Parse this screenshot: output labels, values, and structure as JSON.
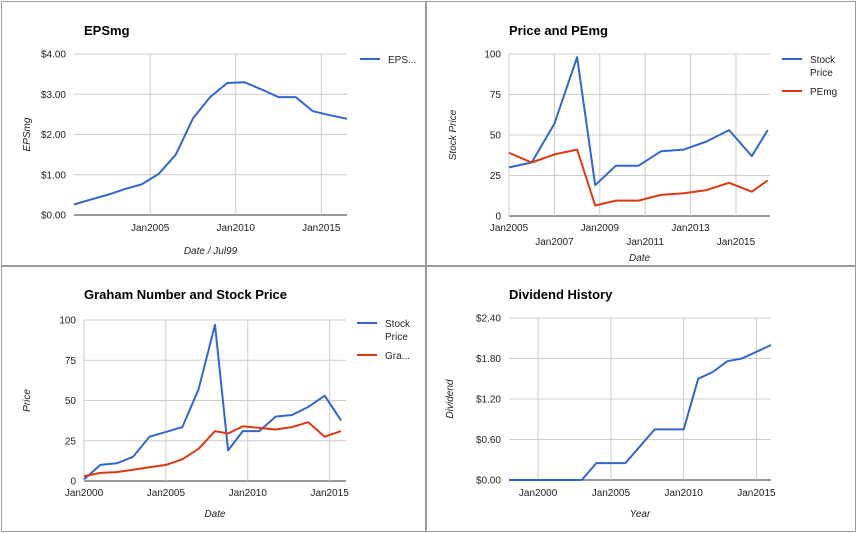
{
  "chart_data": [
    {
      "type": "line",
      "title": "EPSmg",
      "xlabel": "Date / Jul99",
      "ylabel": "EPSmg",
      "xlim": [
        2000.55,
        2016.5
      ],
      "ylim": [
        0,
        4
      ],
      "x_ticks": [
        {
          "v": 2005,
          "label": "Jan2005"
        },
        {
          "v": 2010,
          "label": "Jan2010"
        },
        {
          "v": 2015,
          "label": "Jan2015"
        }
      ],
      "y_ticks": [
        {
          "v": 0,
          "label": "$0.00"
        },
        {
          "v": 1,
          "label": "$1.00"
        },
        {
          "v": 2,
          "label": "$2.00"
        },
        {
          "v": 3,
          "label": "$3.00"
        },
        {
          "v": 4,
          "label": "$4.00"
        }
      ],
      "legend": "right",
      "grid": true,
      "series": [
        {
          "name": "EPS...",
          "color": "#3366cc",
          "x": [
            2000.55,
            2001.5,
            2002.5,
            2003.5,
            2004.5,
            2005.5,
            2006.5,
            2007.5,
            2008.5,
            2009.5,
            2010.5,
            2011.5,
            2012.5,
            2013.5,
            2014.5,
            2015.5,
            2016.5
          ],
          "y": [
            0.26,
            0.38,
            0.5,
            0.64,
            0.76,
            1.02,
            1.5,
            2.4,
            2.93,
            3.28,
            3.3,
            3.12,
            2.93,
            2.93,
            2.58,
            2.48,
            2.39
          ]
        }
      ]
    },
    {
      "type": "line",
      "title": "Price and PEmg",
      "xlabel": "Date",
      "ylabel": "Stock Price",
      "xlim": [
        2005,
        2016.5
      ],
      "ylim": [
        0,
        100
      ],
      "x_ticks": [
        {
          "v": 2005,
          "label": "Jan2005",
          "row": 0
        },
        {
          "v": 2007,
          "label": "Jan2007",
          "row": 1
        },
        {
          "v": 2009,
          "label": "Jan2009",
          "row": 0
        },
        {
          "v": 2011,
          "label": "Jan2011",
          "row": 1
        },
        {
          "v": 2013,
          "label": "Jan2013",
          "row": 0
        },
        {
          "v": 2015,
          "label": "Jan2015",
          "row": 1
        }
      ],
      "y_ticks": [
        {
          "v": 0,
          "label": "0"
        },
        {
          "v": 25,
          "label": "25"
        },
        {
          "v": 50,
          "label": "50"
        },
        {
          "v": 75,
          "label": "75"
        },
        {
          "v": 100,
          "label": "100"
        }
      ],
      "legend": "right",
      "grid": true,
      "series": [
        {
          "name": "Stock Price",
          "color": "#3366cc",
          "x": [
            2005,
            2006,
            2007,
            2008,
            2008.8,
            2009.7,
            2010.7,
            2011.7,
            2012.7,
            2013.7,
            2014.7,
            2015.7,
            2016.4
          ],
          "y": [
            30,
            33,
            57,
            98,
            19,
            31,
            31,
            40,
            41,
            46,
            53,
            37,
            53
          ]
        },
        {
          "name": "PEmg",
          "color": "#dc3912",
          "x": [
            2005,
            2006,
            2007,
            2008,
            2008.8,
            2009.7,
            2010.7,
            2011.7,
            2012.7,
            2013.7,
            2014.7,
            2015.7,
            2016.4
          ],
          "y": [
            39,
            33,
            38,
            41,
            6.5,
            9.5,
            9.5,
            13,
            14,
            16,
            20.5,
            15,
            22
          ]
        }
      ]
    },
    {
      "type": "line",
      "title": "Graham Number and Stock Price",
      "xlabel": "Date",
      "ylabel": "Price",
      "xlim": [
        2000,
        2016
      ],
      "ylim": [
        0,
        100
      ],
      "x_ticks": [
        {
          "v": 2000,
          "label": "Jan2000"
        },
        {
          "v": 2005,
          "label": "Jan2005"
        },
        {
          "v": 2010,
          "label": "Jan2010"
        },
        {
          "v": 2015,
          "label": "Jan2015"
        }
      ],
      "y_ticks": [
        {
          "v": 0,
          "label": "0"
        },
        {
          "v": 25,
          "label": "25"
        },
        {
          "v": 50,
          "label": "50"
        },
        {
          "v": 75,
          "label": "75"
        },
        {
          "v": 100,
          "label": "100"
        }
      ],
      "legend": "right",
      "grid": true,
      "series": [
        {
          "name": "Stock Price",
          "color": "#3366cc",
          "x": [
            2000,
            2001,
            2002,
            2003,
            2004,
            2005,
            2006,
            2007,
            2008,
            2008.8,
            2009.7,
            2010.7,
            2011.7,
            2012.7,
            2013.7,
            2014.7,
            2015.7
          ],
          "y": [
            1,
            10,
            11,
            15,
            27.5,
            30.5,
            33.5,
            57,
            97,
            19,
            31,
            31,
            40,
            41,
            46,
            53,
            37.5
          ]
        },
        {
          "name": "Gra...",
          "color": "#dc3912",
          "x": [
            2000,
            2001,
            2002,
            2003,
            2004,
            2005,
            2006,
            2007,
            2008,
            2008.8,
            2009.7,
            2010.7,
            2011.7,
            2012.7,
            2013.7,
            2014.7,
            2015.7
          ],
          "y": [
            3,
            5,
            5.5,
            7,
            8.5,
            10,
            13.5,
            20,
            31,
            29.5,
            34,
            33,
            32,
            33.5,
            36.5,
            27.5,
            31
          ]
        }
      ]
    },
    {
      "type": "line",
      "title": "Dividend History",
      "xlabel": "Year",
      "ylabel": "Dividend",
      "xlim": [
        1998,
        2016
      ],
      "ylim": [
        0,
        2.4
      ],
      "x_ticks": [
        {
          "v": 2000,
          "label": "Jan2000"
        },
        {
          "v": 2005,
          "label": "Jan2005"
        },
        {
          "v": 2010,
          "label": "Jan2010"
        },
        {
          "v": 2015,
          "label": "Jan2015"
        }
      ],
      "y_ticks": [
        {
          "v": 0,
          "label": "$0.00"
        },
        {
          "v": 0.6,
          "label": "$0.60"
        },
        {
          "v": 1.2,
          "label": "$1.20"
        },
        {
          "v": 1.8,
          "label": "$1.80"
        },
        {
          "v": 2.4,
          "label": "$2.40"
        }
      ],
      "legend": "none",
      "grid": true,
      "series": [
        {
          "name": "",
          "color": "#3366cc",
          "x": [
            1998,
            1999,
            2000,
            2001,
            2002,
            2003,
            2004,
            2005,
            2006,
            2007,
            2008,
            2009,
            2010,
            2011,
            2012,
            2013,
            2014,
            2015,
            2016
          ],
          "y": [
            0,
            0,
            0,
            0,
            0,
            0,
            0.25,
            0.25,
            0.25,
            0.5,
            0.75,
            0.75,
            0.75,
            1.5,
            1.6,
            1.76,
            1.8,
            1.9,
            2.0
          ]
        }
      ]
    }
  ]
}
